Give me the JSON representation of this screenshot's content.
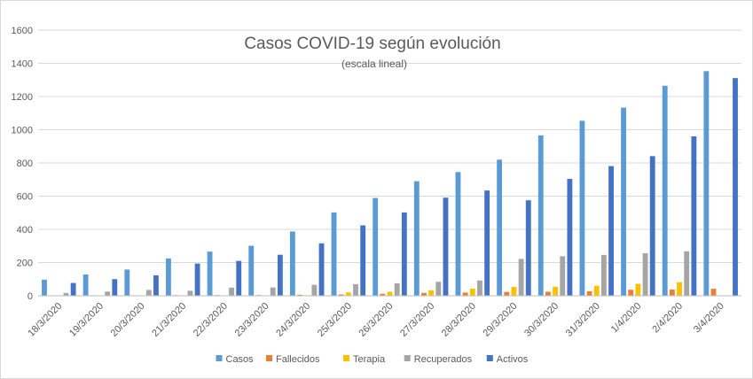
{
  "chart_data": {
    "type": "bar",
    "title": "Casos COVID-19 según evolución",
    "subtitle": "(escala lineal)",
    "xlabel": "",
    "ylabel": "",
    "ylim": [
      0,
      1600
    ],
    "yticks": [
      "0",
      "200",
      "400",
      "600",
      "800",
      "1000",
      "1200",
      "1400",
      "1600"
    ],
    "grid": true,
    "legend_position": "bottom",
    "categories": [
      "18/3/2020",
      "19/3/2020",
      "20/3/2020",
      "21/3/2020",
      "22/3/2020",
      "23/3/2020",
      "24/3/2020",
      "25/3/2020",
      "26/3/2020",
      "27/3/2020",
      "28/3/2020",
      "29/3/2020",
      "30/3/2020",
      "31/3/2020",
      "1/4/2020",
      "2/4/2020",
      "3/4/2020"
    ],
    "series": [
      {
        "name": "Casos",
        "color": "#5b9bd5",
        "values": [
          97,
          128,
          158,
          225,
          266,
          301,
          387,
          502,
          589,
          690,
          745,
          820,
          966,
          1054,
          1133,
          1265,
          1353
        ]
      },
      {
        "name": "Fallecidos",
        "color": "#ed7d31",
        "values": [
          1,
          3,
          3,
          4,
          4,
          4,
          6,
          8,
          12,
          17,
          19,
          23,
          24,
          27,
          36,
          37,
          42
        ]
      },
      {
        "name": "Terapia",
        "color": "#ffc000",
        "values": [
          2,
          2,
          2,
          2,
          3,
          3,
          3,
          20,
          24,
          33,
          43,
          53,
          55,
          60,
          72,
          82,
          0
        ]
      },
      {
        "name": "Recuperados",
        "color": "#a5a5a5",
        "values": [
          17,
          25,
          35,
          30,
          49,
          50,
          66,
          70,
          75,
          84,
          92,
          222,
          238,
          246,
          256,
          268,
          0
        ]
      },
      {
        "name": "Activos",
        "color": "#4472c4",
        "values": [
          77,
          100,
          123,
          194,
          210,
          247,
          316,
          424,
          502,
          591,
          634,
          575,
          704,
          781,
          841,
          960,
          1311
        ]
      }
    ]
  }
}
